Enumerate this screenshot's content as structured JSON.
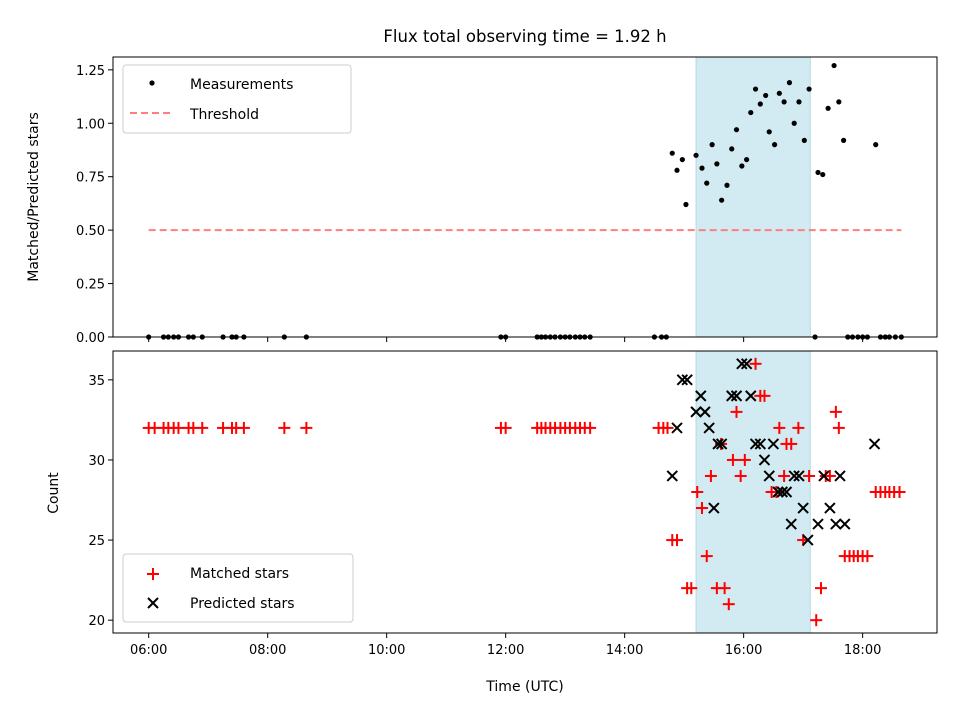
{
  "chart_data": [
    {
      "type": "scatter",
      "title": "Flux total observing time = 1.92 h",
      "xlabel": "",
      "ylabel": "Matched/Predicted stars",
      "x_unit": "hours (UTC)",
      "xlim": [
        5.4,
        19.25
      ],
      "ylim": [
        0.0,
        1.31
      ],
      "yticks": [
        0.0,
        0.25,
        0.5,
        0.75,
        1.0,
        1.25
      ],
      "ytick_labels": [
        "0.00",
        "0.25",
        "0.50",
        "0.75",
        "1.00",
        "1.25"
      ],
      "xticks": [
        6,
        8,
        10,
        12,
        14,
        16,
        18
      ],
      "legend_loc": "upper left",
      "highlight_span": {
        "x": [
          15.2,
          17.12
        ],
        "color": "#add8e6"
      },
      "series": [
        {
          "name": "Measurements",
          "kind": "scatter",
          "marker": "dot",
          "color": "#000000",
          "points": [
            [
              6.0,
              0.0
            ],
            [
              6.25,
              0.0
            ],
            [
              6.33,
              0.0
            ],
            [
              6.42,
              0.0
            ],
            [
              6.5,
              0.0
            ],
            [
              6.67,
              0.0
            ],
            [
              6.75,
              0.0
            ],
            [
              6.9,
              0.0
            ],
            [
              7.25,
              0.0
            ],
            [
              7.4,
              0.0
            ],
            [
              7.47,
              0.0
            ],
            [
              7.6,
              0.0
            ],
            [
              8.28,
              0.0
            ],
            [
              8.65,
              0.0
            ],
            [
              11.92,
              0.0
            ],
            [
              12.0,
              0.0
            ],
            [
              12.53,
              0.0
            ],
            [
              12.6,
              0.0
            ],
            [
              12.67,
              0.0
            ],
            [
              12.75,
              0.0
            ],
            [
              12.83,
              0.0
            ],
            [
              12.92,
              0.0
            ],
            [
              13.0,
              0.0
            ],
            [
              13.08,
              0.0
            ],
            [
              13.17,
              0.0
            ],
            [
              13.25,
              0.0
            ],
            [
              13.33,
              0.0
            ],
            [
              13.42,
              0.0
            ],
            [
              14.5,
              0.0
            ],
            [
              14.62,
              0.0
            ],
            [
              14.7,
              0.0
            ],
            [
              14.8,
              0.86
            ],
            [
              14.88,
              0.78
            ],
            [
              14.97,
              0.83
            ],
            [
              15.03,
              0.62
            ],
            [
              15.2,
              0.85
            ],
            [
              15.3,
              0.79
            ],
            [
              15.38,
              0.72
            ],
            [
              15.47,
              0.9
            ],
            [
              15.55,
              0.81
            ],
            [
              15.63,
              0.64
            ],
            [
              15.72,
              0.71
            ],
            [
              15.8,
              0.88
            ],
            [
              15.88,
              0.97
            ],
            [
              15.97,
              0.8
            ],
            [
              16.05,
              0.83
            ],
            [
              16.12,
              1.05
            ],
            [
              16.2,
              1.16
            ],
            [
              16.28,
              1.09
            ],
            [
              16.37,
              1.13
            ],
            [
              16.43,
              0.96
            ],
            [
              16.52,
              0.9
            ],
            [
              16.6,
              1.14
            ],
            [
              16.68,
              1.1
            ],
            [
              16.77,
              1.19
            ],
            [
              16.85,
              1.0
            ],
            [
              16.93,
              1.1
            ],
            [
              17.02,
              0.92
            ],
            [
              17.1,
              1.16
            ],
            [
              17.25,
              0.77
            ],
            [
              17.33,
              0.76
            ],
            [
              17.42,
              1.07
            ],
            [
              17.52,
              1.27
            ],
            [
              17.6,
              1.1
            ],
            [
              17.68,
              0.92
            ],
            [
              18.22,
              0.9
            ],
            [
              17.2,
              0.0
            ],
            [
              17.75,
              0.0
            ],
            [
              17.83,
              0.0
            ],
            [
              17.92,
              0.0
            ],
            [
              18.0,
              0.0
            ],
            [
              18.08,
              0.0
            ],
            [
              18.3,
              0.0
            ],
            [
              18.38,
              0.0
            ],
            [
              18.45,
              0.0
            ],
            [
              18.55,
              0.0
            ],
            [
              18.65,
              0.0
            ]
          ]
        },
        {
          "name": "Threshold",
          "kind": "line",
          "style": "dashed",
          "color": "#ff7f7f",
          "x": [
            6.0,
            18.65
          ],
          "y": [
            0.5,
            0.5
          ]
        }
      ]
    },
    {
      "type": "scatter",
      "title": "",
      "xlabel": "Time (UTC)",
      "ylabel": "Count",
      "x_unit": "hours (UTC)",
      "xlim": [
        5.4,
        19.25
      ],
      "ylim": [
        19.2,
        36.8
      ],
      "yticks": [
        20,
        25,
        30,
        35
      ],
      "xticks": [
        6,
        8,
        10,
        12,
        14,
        16,
        18
      ],
      "xtick_labels": [
        "06:00",
        "08:00",
        "10:00",
        "12:00",
        "14:00",
        "16:00",
        "18:00"
      ],
      "legend_loc": "lower left",
      "highlight_span": {
        "x": [
          15.2,
          17.12
        ],
        "color": "#add8e6"
      },
      "series": [
        {
          "name": "Matched stars",
          "kind": "scatter",
          "marker": "plus",
          "color": "#ff0000",
          "points": [
            [
              6.0,
              32
            ],
            [
              6.1,
              32
            ],
            [
              6.25,
              32
            ],
            [
              6.33,
              32
            ],
            [
              6.42,
              32
            ],
            [
              6.5,
              32
            ],
            [
              6.67,
              32
            ],
            [
              6.75,
              32
            ],
            [
              6.9,
              32
            ],
            [
              7.25,
              32
            ],
            [
              7.4,
              32
            ],
            [
              7.47,
              32
            ],
            [
              7.6,
              32
            ],
            [
              8.28,
              32
            ],
            [
              8.65,
              32
            ],
            [
              11.92,
              32
            ],
            [
              12.0,
              32
            ],
            [
              12.53,
              32
            ],
            [
              12.6,
              32
            ],
            [
              12.67,
              32
            ],
            [
              12.75,
              32
            ],
            [
              12.83,
              32
            ],
            [
              12.92,
              32
            ],
            [
              13.0,
              32
            ],
            [
              13.08,
              32
            ],
            [
              13.17,
              32
            ],
            [
              13.25,
              32
            ],
            [
              13.33,
              32
            ],
            [
              13.42,
              32
            ],
            [
              14.57,
              32
            ],
            [
              14.65,
              32
            ],
            [
              14.72,
              32
            ],
            [
              14.8,
              25
            ],
            [
              14.88,
              25
            ],
            [
              15.05,
              22
            ],
            [
              15.12,
              22
            ],
            [
              15.22,
              28
            ],
            [
              15.3,
              27
            ],
            [
              15.38,
              24
            ],
            [
              15.45,
              29
            ],
            [
              15.55,
              22
            ],
            [
              15.62,
              31
            ],
            [
              15.68,
              22
            ],
            [
              15.75,
              21
            ],
            [
              15.82,
              30
            ],
            [
              15.88,
              33
            ],
            [
              15.95,
              29
            ],
            [
              16.02,
              30
            ],
            [
              16.2,
              36
            ],
            [
              16.28,
              34
            ],
            [
              16.35,
              34
            ],
            [
              16.47,
              28
            ],
            [
              16.55,
              28
            ],
            [
              16.6,
              32
            ],
            [
              16.68,
              29
            ],
            [
              16.72,
              31
            ],
            [
              16.8,
              31
            ],
            [
              16.92,
              32
            ],
            [
              17.0,
              25
            ],
            [
              17.1,
              29
            ],
            [
              17.22,
              20
            ],
            [
              17.3,
              22
            ],
            [
              17.38,
              29
            ],
            [
              17.45,
              29
            ],
            [
              17.55,
              33
            ],
            [
              17.6,
              32
            ],
            [
              17.7,
              24
            ],
            [
              17.78,
              24
            ],
            [
              17.85,
              24
            ],
            [
              17.92,
              24
            ],
            [
              18.0,
              24
            ],
            [
              18.08,
              24
            ],
            [
              18.22,
              28
            ],
            [
              18.3,
              28
            ],
            [
              18.38,
              28
            ],
            [
              18.45,
              28
            ],
            [
              18.53,
              28
            ],
            [
              18.62,
              28
            ]
          ]
        },
        {
          "name": "Predicted stars",
          "kind": "scatter",
          "marker": "x",
          "color": "#000000",
          "points": [
            [
              14.8,
              29
            ],
            [
              14.88,
              32
            ],
            [
              14.97,
              35
            ],
            [
              15.05,
              35
            ],
            [
              15.2,
              33
            ],
            [
              15.28,
              34
            ],
            [
              15.35,
              33
            ],
            [
              15.42,
              32
            ],
            [
              15.5,
              27
            ],
            [
              15.57,
              31
            ],
            [
              15.63,
              31
            ],
            [
              15.8,
              34
            ],
            [
              15.88,
              34
            ],
            [
              15.97,
              36
            ],
            [
              16.05,
              36
            ],
            [
              16.12,
              34
            ],
            [
              16.2,
              31
            ],
            [
              16.28,
              31
            ],
            [
              16.35,
              30
            ],
            [
              16.43,
              29
            ],
            [
              16.5,
              31
            ],
            [
              16.58,
              28
            ],
            [
              16.65,
              28
            ],
            [
              16.72,
              28
            ],
            [
              16.8,
              26
            ],
            [
              16.85,
              29
            ],
            [
              16.93,
              29
            ],
            [
              17.0,
              27
            ],
            [
              17.08,
              25
            ],
            [
              17.25,
              26
            ],
            [
              17.35,
              29
            ],
            [
              17.45,
              27
            ],
            [
              17.55,
              26
            ],
            [
              17.62,
              29
            ],
            [
              17.7,
              26
            ],
            [
              18.2,
              31
            ]
          ]
        }
      ]
    }
  ]
}
